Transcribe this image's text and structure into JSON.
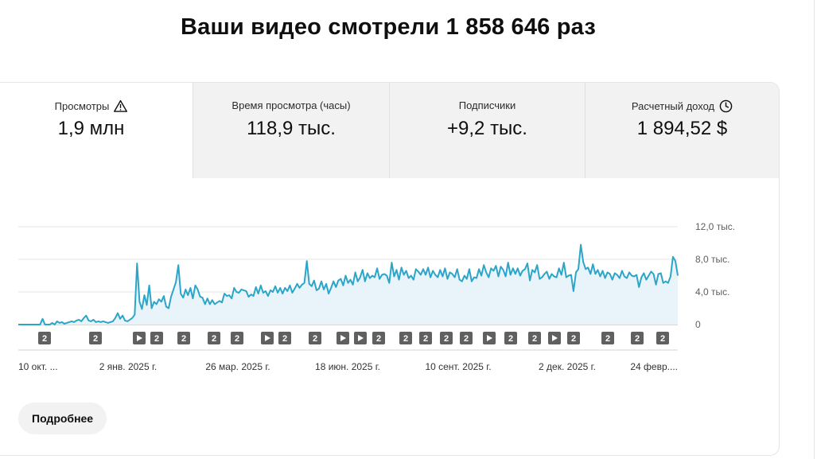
{
  "page_title": "Ваши видео смотрели 1 858 646 раз",
  "metrics": [
    {
      "label": "Просмотры",
      "value": "1,9 млн",
      "icon": "warning-icon",
      "active": true
    },
    {
      "label": "Время просмотра (часы)",
      "value": "118,9 тыс.",
      "icon": "",
      "active": false
    },
    {
      "label": "Подписчики",
      "value": "+9,2 тыс.",
      "icon": "",
      "active": false
    },
    {
      "label": "Расчетный доход",
      "value": "1 894,52 $",
      "icon": "clock-icon",
      "active": false
    }
  ],
  "more_button": "Подробнее",
  "colors": {
    "line": "#2ba5c8",
    "area": "#e8f4fa",
    "marker": "#606060"
  },
  "chart_data": {
    "type": "area",
    "y_tick_labels": [
      "12,0 тыс.",
      "8,0 тыс.",
      "4,0 тыс.",
      "0"
    ],
    "y_ticks": [
      12000,
      8000,
      4000,
      0
    ],
    "ylim": [
      0,
      12000
    ],
    "x_tick_labels": [
      "10 окт. ...",
      "2 янв. 2025 г.",
      "26 мар. 2025 г.",
      "18 июн. 2025 г.",
      "10 сент. 2025 г.",
      "2 дек. 2025 г.",
      "24 февр...."
    ],
    "grid": true,
    "series": [
      {
        "values": [
          0,
          0,
          0,
          0,
          0,
          0,
          0,
          0,
          0,
          0,
          700,
          0,
          0,
          0,
          200,
          0,
          400,
          200,
          300,
          100,
          200,
          300,
          400,
          300,
          500,
          600,
          400,
          800,
          1100,
          500,
          400,
          600,
          300,
          400,
          300,
          400,
          300,
          200,
          300,
          400,
          800,
          1400,
          700,
          1100,
          500,
          400,
          600,
          800,
          1200,
          7500,
          2800,
          1900,
          3600,
          2400,
          4800,
          2000,
          2800,
          2500,
          3100,
          2800,
          3500,
          2200,
          2000,
          3400,
          4300,
          5200,
          7300,
          3800,
          3300,
          4300,
          3600,
          4500,
          3200,
          4800,
          4300,
          3400,
          3300,
          2500,
          3200,
          2500,
          3000,
          2500,
          2700,
          2900,
          2700,
          3800,
          3500,
          3600,
          3200,
          4500,
          4000,
          3900,
          4300,
          4200,
          4100,
          3400,
          3700,
          3500,
          4600,
          3800,
          4800,
          3900,
          4100,
          3500,
          4200,
          4000,
          4700,
          3900,
          4500,
          3800,
          4500,
          4100,
          4800,
          3900,
          4400,
          5000,
          4500,
          4900,
          5100,
          7800,
          5000,
          4700,
          5400,
          4200,
          4400,
          5300,
          4300,
          5000,
          3800,
          4500,
          5300,
          4600,
          5400,
          5600,
          4800,
          6000,
          5100,
          5500,
          4900,
          6400,
          5300,
          5800,
          6700,
          5300,
          6300,
          5700,
          6000,
          5800,
          6900,
          5600,
          6100,
          6200,
          6000,
          5100,
          7600,
          5900,
          6700,
          5500,
          7000,
          6100,
          6600,
          5700,
          6000,
          5500,
          6800,
          6500,
          6100,
          6800,
          6100,
          7000,
          5800,
          6600,
          6100,
          5800,
          6700,
          5900,
          6900,
          5600,
          6400,
          6200,
          5800,
          6800,
          5500,
          5300,
          6000,
          5600,
          6800,
          5300,
          5800,
          5700,
          6800,
          6000,
          7300,
          6400,
          5800,
          6900,
          6600,
          7200,
          5900,
          7100,
          6700,
          5900,
          7600,
          6100,
          6900,
          6200,
          6900,
          6000,
          6600,
          6800,
          7500,
          5400,
          6700,
          6400,
          7300,
          5600,
          5800,
          6200,
          6500,
          5600,
          6200,
          5900,
          5800,
          6900,
          6100,
          7600,
          5800,
          6000,
          6100,
          4100,
          6400,
          6800,
          9800,
          7700,
          6800,
          7000,
          6200,
          7400,
          6200,
          6700,
          5900,
          6600,
          5700,
          6400,
          6200,
          5500,
          6300,
          6100,
          5700,
          6600,
          5900,
          5700,
          6400,
          6000,
          5900,
          6100,
          4600,
          5800,
          6300,
          5500,
          6000,
          6500,
          6200,
          4900,
          6200,
          6300,
          5100,
          5300,
          5100,
          5900,
          8300,
          7800,
          6000
        ]
      }
    ],
    "event_markers": [
      {
        "type": "count",
        "label": "2"
      },
      {
        "type": "count",
        "label": "2"
      },
      {
        "type": "play",
        "label": ""
      },
      {
        "type": "count",
        "label": "2"
      },
      {
        "type": "count",
        "label": "2"
      },
      {
        "type": "count",
        "label": "2"
      },
      {
        "type": "count",
        "label": "2"
      },
      {
        "type": "play",
        "label": ""
      },
      {
        "type": "count",
        "label": "2"
      },
      {
        "type": "count",
        "label": "2"
      },
      {
        "type": "play",
        "label": ""
      },
      {
        "type": "play",
        "label": ""
      },
      {
        "type": "count",
        "label": "2"
      },
      {
        "type": "count",
        "label": "2"
      },
      {
        "type": "count",
        "label": "2"
      },
      {
        "type": "count",
        "label": "2"
      },
      {
        "type": "count",
        "label": "2"
      },
      {
        "type": "play",
        "label": ""
      },
      {
        "type": "count",
        "label": "2"
      },
      {
        "type": "count",
        "label": "2"
      },
      {
        "type": "play",
        "label": ""
      },
      {
        "type": "count",
        "label": "2"
      },
      {
        "type": "count",
        "label": "2"
      },
      {
        "type": "count",
        "label": "2"
      },
      {
        "type": "count",
        "label": "2"
      }
    ]
  }
}
